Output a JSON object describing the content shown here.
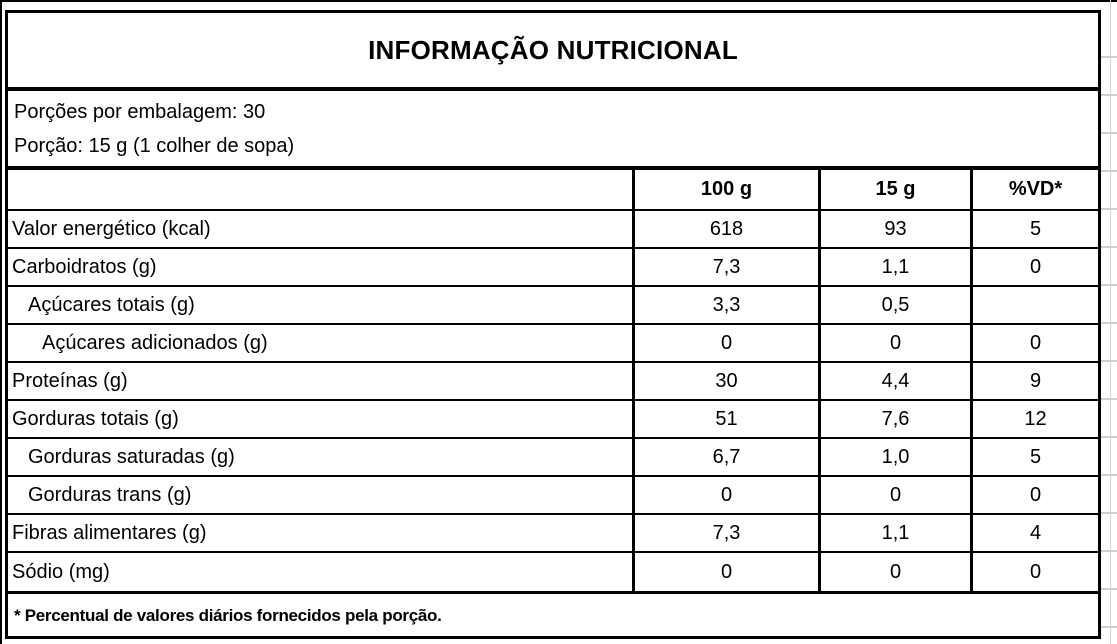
{
  "table": {
    "title": "INFORMAÇÃO NUTRICIONAL",
    "serving_info": {
      "servings_per_package": "Porções por embalagem: 30",
      "serving_size": "Porção: 15 g (1 colher de sopa)"
    },
    "columns": [
      "100 g",
      "15 g",
      "%VD*"
    ],
    "rows": [
      {
        "label": "Valor energético (kcal)",
        "indent": 0,
        "v100": "618",
        "v15": "93",
        "vd": "5"
      },
      {
        "label": "Carboidratos (g)",
        "indent": 0,
        "v100": "7,3",
        "v15": "1,1",
        "vd": "0"
      },
      {
        "label": "Açúcares totais (g)",
        "indent": 1,
        "v100": "3,3",
        "v15": "0,5",
        "vd": ""
      },
      {
        "label": "Açúcares adicionados (g)",
        "indent": 2,
        "v100": "0",
        "v15": "0",
        "vd": "0"
      },
      {
        "label": "Proteínas (g)",
        "indent": 0,
        "v100": "30",
        "v15": "4,4",
        "vd": "9"
      },
      {
        "label": "Gorduras totais (g)",
        "indent": 0,
        "v100": "51",
        "v15": "7,6",
        "vd": "12"
      },
      {
        "label": "Gorduras saturadas (g)",
        "indent": 1,
        "v100": "6,7",
        "v15": "1,0",
        "vd": "5"
      },
      {
        "label": "Gorduras trans (g)",
        "indent": 1,
        "v100": "0",
        "v15": "0",
        "vd": "0"
      },
      {
        "label": "Fibras alimentares (g)",
        "indent": 0,
        "v100": "7,3",
        "v15": "1,1",
        "vd": "4"
      },
      {
        "label": "Sódio (mg)",
        "indent": 0,
        "v100": "0",
        "v15": "0",
        "vd": "0"
      }
    ],
    "footnote": "* Percentual de valores diários fornecidos pela porção."
  },
  "colors": {
    "border": "#000000",
    "text": "#000000",
    "background": "#ffffff",
    "gridline": "#cfcfcf"
  }
}
